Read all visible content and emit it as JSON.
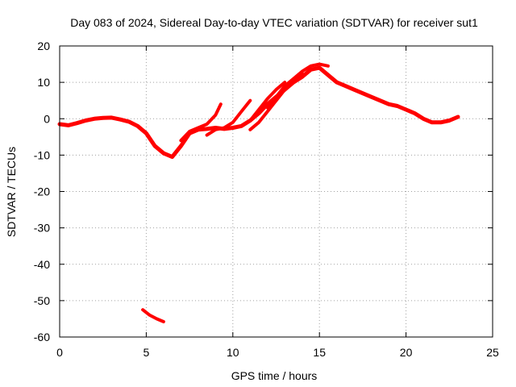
{
  "chart_data": {
    "type": "line",
    "title": "Day 083 of 2024, Sidereal Day-to-day VTEC variation (SDTVAR) for receiver sut1",
    "xlabel": "GPS time / hours",
    "ylabel": "SDTVAR / TECUs",
    "xlim": [
      0,
      25
    ],
    "ylim": [
      -60,
      20
    ],
    "xticks": [
      0,
      5,
      10,
      15,
      20,
      25
    ],
    "yticks": [
      -60,
      -50,
      -40,
      -30,
      -20,
      -10,
      0,
      10,
      20
    ],
    "grid": true,
    "color": "#ff0000",
    "series": [
      {
        "name": "main-trace",
        "width": 5,
        "x": [
          0.0,
          0.5,
          1.0,
          1.5,
          2.0,
          2.5,
          3.0,
          3.5,
          4.0,
          4.5,
          5.0,
          5.5,
          6.0,
          6.5,
          7.0,
          7.5,
          8.0,
          8.5,
          9.0,
          9.5,
          10.0,
          10.5,
          11.0,
          11.5,
          12.0,
          12.5,
          13.0,
          13.5,
          14.0,
          14.5,
          15.0,
          15.5,
          16.0,
          16.5,
          17.0,
          17.5,
          18.0,
          18.5,
          19.0,
          19.5,
          20.0,
          20.5,
          21.0,
          21.5,
          22.0,
          22.5,
          23.0
        ],
        "y": [
          -1.5,
          -1.8,
          -1.2,
          -0.5,
          0.0,
          0.2,
          0.3,
          -0.2,
          -0.8,
          -2.0,
          -4.0,
          -7.5,
          -9.5,
          -10.5,
          -7.5,
          -4.0,
          -3.0,
          -2.8,
          -2.5,
          -2.8,
          -2.5,
          -2.0,
          -0.5,
          1.5,
          4.0,
          6.0,
          8.0,
          10.0,
          11.5,
          13.5,
          14.0,
          12.0,
          10.0,
          9.0,
          8.0,
          7.0,
          6.0,
          5.0,
          4.0,
          3.5,
          2.5,
          1.5,
          0.0,
          -1.0,
          -1.0,
          -0.5,
          0.5
        ]
      },
      {
        "name": "upper-branch",
        "width": 4,
        "x": [
          12.0,
          12.5,
          13.0,
          13.5,
          14.0,
          14.5,
          15.0,
          15.5
        ],
        "y": [
          3.0,
          6.0,
          9.0,
          11.0,
          13.0,
          14.5,
          15.0,
          14.5
        ]
      },
      {
        "name": "branch-1",
        "width": 4,
        "x": [
          7.0,
          7.5,
          8.0,
          8.5,
          9.0,
          9.3
        ],
        "y": [
          -6.0,
          -3.5,
          -2.5,
          -1.5,
          1.0,
          4.0
        ]
      },
      {
        "name": "branch-2",
        "width": 4,
        "x": [
          8.5,
          9.0,
          9.5,
          10.0,
          10.5,
          11.0
        ],
        "y": [
          -4.5,
          -3.0,
          -2.5,
          -1.0,
          2.0,
          5.0
        ]
      },
      {
        "name": "branch-3",
        "width": 4,
        "x": [
          10.0,
          10.5,
          11.0,
          11.5,
          12.0,
          12.5,
          13.0
        ],
        "y": [
          -2.5,
          -2.0,
          -0.5,
          2.5,
          5.5,
          8.0,
          10.0
        ]
      },
      {
        "name": "branch-4",
        "width": 4,
        "x": [
          11.0,
          11.5,
          12.0,
          12.5,
          13.0,
          13.5,
          14.0
        ],
        "y": [
          -3.0,
          -1.0,
          2.0,
          5.0,
          8.0,
          10.5,
          12.5
        ]
      },
      {
        "name": "outlier-segment",
        "width": 4,
        "x": [
          4.8,
          5.2,
          5.6,
          6.0
        ],
        "y": [
          -52.5,
          -54.0,
          -55.0,
          -55.8
        ]
      }
    ]
  }
}
